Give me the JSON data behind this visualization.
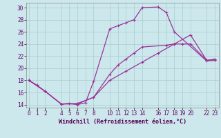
{
  "xlabel": "Windchill (Refroidissement éolien,°C)",
  "background_color": "#cce8ec",
  "grid_color": "#aacccc",
  "line_color": "#993399",
  "xlim": [
    -0.3,
    23.5
  ],
  "ylim": [
    13.5,
    30.8
  ],
  "yticks": [
    14,
    16,
    18,
    20,
    22,
    24,
    26,
    28,
    30
  ],
  "xticks": [
    0,
    1,
    2,
    4,
    5,
    6,
    7,
    8,
    10,
    11,
    12,
    13,
    14,
    16,
    17,
    18,
    19,
    20,
    22,
    23
  ],
  "xtick_labels": [
    "0",
    "1",
    "2",
    "4",
    "5",
    "6",
    "7",
    "8",
    "10",
    "11",
    "12",
    "13",
    "14",
    "16",
    "17",
    "18",
    "19",
    "20",
    "22",
    "23"
  ],
  "curve1_x": [
    0,
    1,
    2,
    4,
    5,
    6,
    7,
    8,
    10,
    11,
    12,
    13,
    14,
    16,
    17,
    18,
    22,
    23
  ],
  "curve1_y": [
    18.0,
    17.2,
    16.2,
    14.1,
    14.2,
    14.0,
    14.3,
    17.8,
    26.5,
    27.0,
    27.5,
    28.0,
    30.0,
    30.1,
    29.2,
    26.0,
    21.2,
    21.3
  ],
  "curve2_x": [
    0,
    2,
    4,
    6,
    8,
    10,
    11,
    12,
    13,
    14,
    17,
    18,
    19,
    20,
    22,
    23
  ],
  "curve2_y": [
    18.0,
    16.2,
    14.1,
    14.1,
    15.2,
    19.0,
    20.5,
    21.5,
    22.5,
    23.5,
    23.8,
    24.0,
    24.0,
    24.0,
    21.3,
    21.4
  ],
  "curve3_x": [
    0,
    2,
    4,
    6,
    8,
    10,
    12,
    14,
    16,
    18,
    20,
    22,
    23
  ],
  "curve3_y": [
    18.0,
    16.2,
    14.1,
    14.2,
    15.2,
    18.0,
    19.5,
    21.0,
    22.5,
    24.0,
    25.5,
    21.3,
    21.5
  ],
  "marker_size": 3.5,
  "line_width": 0.9,
  "font_size": 5.5
}
